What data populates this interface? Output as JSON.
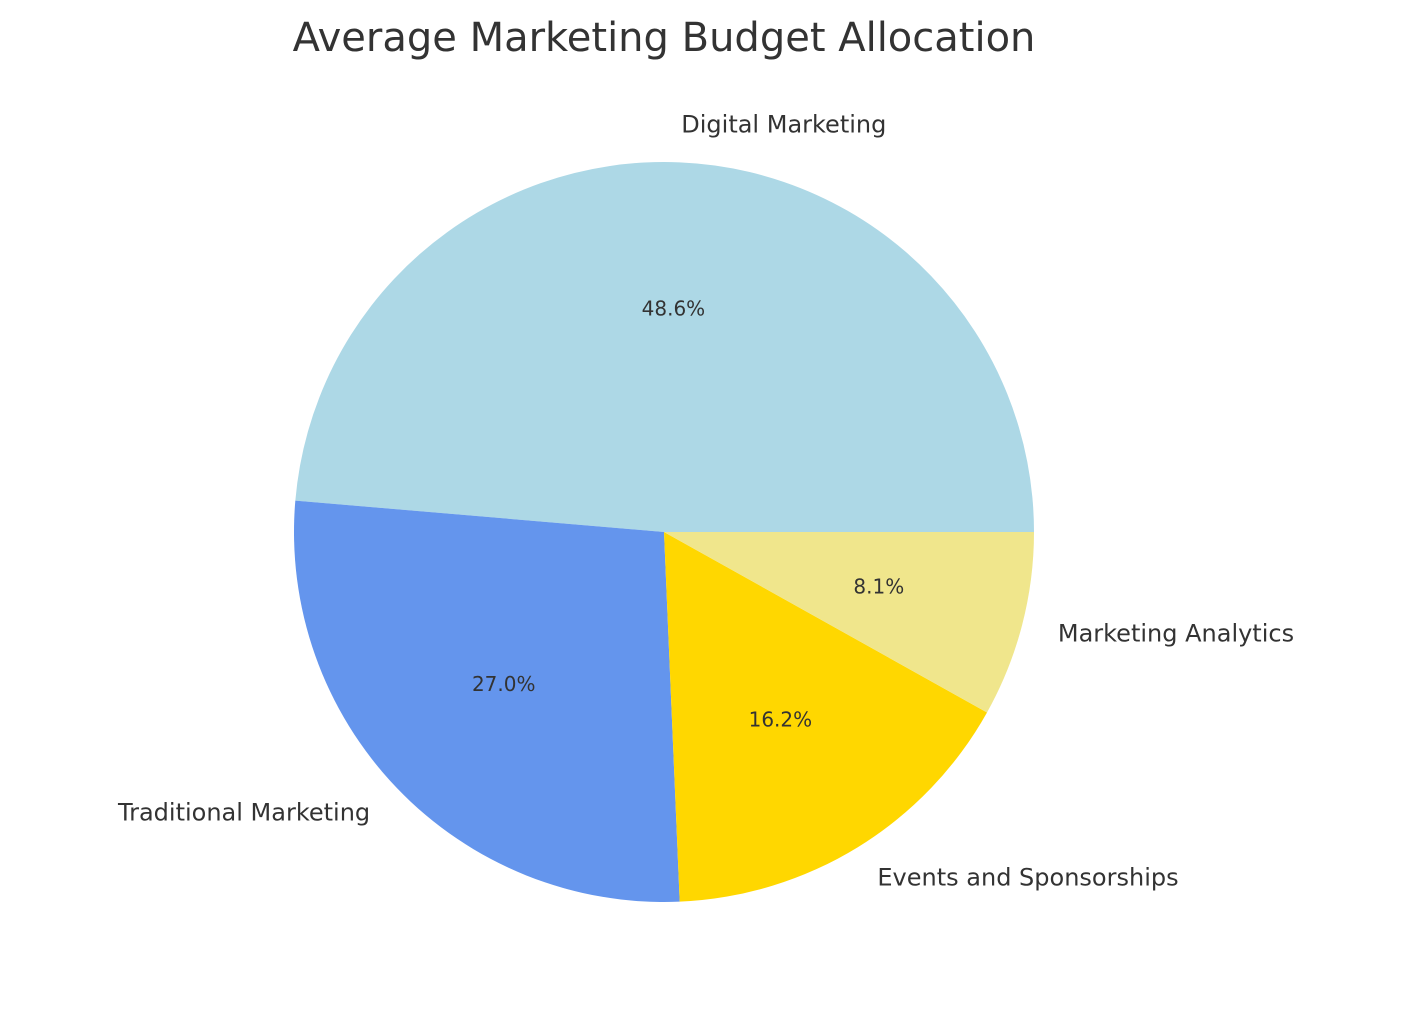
{
  "chart_data": {
    "type": "pie",
    "title": "Average Marketing Budget Allocation",
    "categories": [
      "Digital Marketing",
      "Traditional Marketing",
      "Events and Sponsorships",
      "Marketing Analytics"
    ],
    "values": [
      48.6,
      27.0,
      16.2,
      8.1
    ],
    "value_labels": [
      "48.6%",
      "27.0%",
      "16.2%",
      "8.1%"
    ],
    "colors": [
      "#add8e6",
      "#6495ed",
      "#ffd700",
      "#f0e68c"
    ]
  }
}
